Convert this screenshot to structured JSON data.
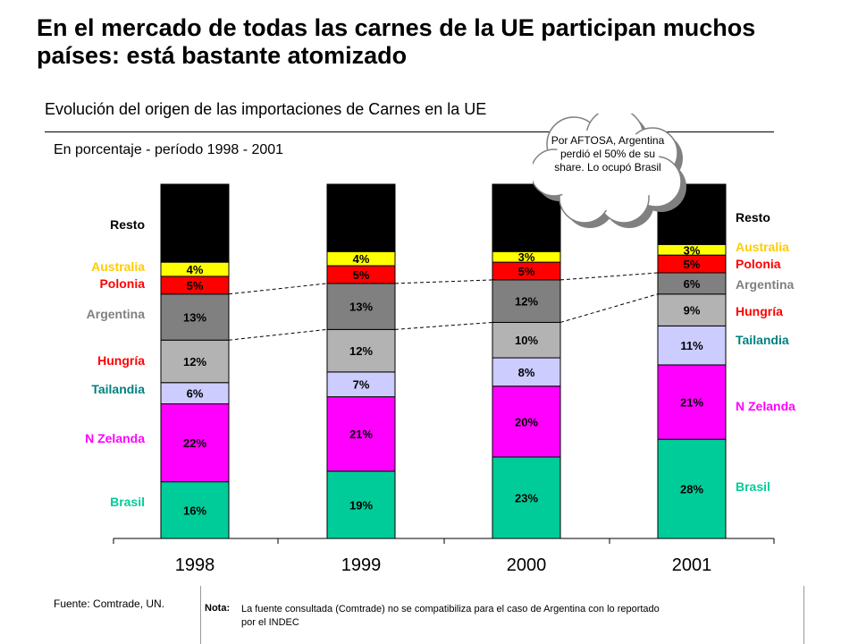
{
  "page": {
    "title": "En el mercado de todas las carnes de la UE participan muchos países: está bastante atomizado",
    "subtitle": "Evolución del origen de las importaciones de Carnes en la UE",
    "unit_label": "En porcentaje - período 1998 - 2001",
    "source": "Fuente: Comtrade, UN.",
    "note_key": "Nota:",
    "note_text": "La fuente consultada (Comtrade) no se compatibiliza para el caso de Argentina con lo reportado por el INDEC",
    "callout": "Por AFTOSA, Argentina perdió el 50% de su share. Lo ocupó Brasil"
  },
  "chart_data": {
    "type": "bar",
    "stacked": true,
    "categories": [
      "1998",
      "1999",
      "2000",
      "2001"
    ],
    "ylim": [
      0,
      100
    ],
    "xlabel": "",
    "ylabel": "",
    "series": [
      {
        "name": "Brasil",
        "values": [
          16,
          19,
          23,
          28
        ],
        "color": "#00CC99",
        "label_color": "#00CC99",
        "labels": [
          "16%",
          "19%",
          "23%",
          "28%"
        ]
      },
      {
        "name": "N Zelanda",
        "values": [
          22,
          21,
          20,
          21
        ],
        "color": "#FF00FF",
        "label_color": "#FF00FF",
        "labels": [
          "22%",
          "21%",
          "20%",
          "21%"
        ]
      },
      {
        "name": "Tailandia",
        "values": [
          6,
          7,
          8,
          11
        ],
        "color": "#CCCCFF",
        "label_color": "#008080",
        "labels": [
          "6%",
          "7%",
          "8%",
          "11%"
        ]
      },
      {
        "name": "Hungría",
        "values": [
          12,
          12,
          10,
          9
        ],
        "color": "#B3B3B3",
        "label_color": "#FF0000",
        "labels": [
          "12%",
          "12%",
          "10%",
          "9%"
        ]
      },
      {
        "name": "Argentina",
        "values": [
          13,
          13,
          12,
          6
        ],
        "color": "#808080",
        "label_color": "#808080",
        "labels": [
          "13%",
          "13%",
          "12%",
          "6%"
        ]
      },
      {
        "name": "Polonia",
        "values": [
          5,
          5,
          5,
          5
        ],
        "color": "#FF0000",
        "label_color": "#FF0000",
        "labels": [
          "5%",
          "5%",
          "5%",
          "5%"
        ]
      },
      {
        "name": "Australia",
        "values": [
          4,
          4,
          3,
          3
        ],
        "color": "#FFFF00",
        "label_color": "#FFCC00",
        "labels": [
          "4%",
          "4%",
          "3%",
          "3%"
        ]
      },
      {
        "name": "Resto",
        "values": [
          22,
          19,
          19,
          17
        ],
        "color": "#000000",
        "label_color": "#000000",
        "labels": [
          "",
          "",
          "",
          ""
        ]
      }
    ],
    "left_legend": [
      "Resto",
      "Australia",
      "Polonia",
      "Argentina",
      "Hungría",
      "Tailandia",
      "N Zelanda",
      "Brasil"
    ],
    "right_legend": [
      "Resto",
      "Australia",
      "Polonia",
      "Argentina",
      "Hungría",
      "Tailandia",
      "N Zelanda",
      "Brasil"
    ],
    "annotations": [
      "Dashed lines trace the Argentina share across years"
    ]
  }
}
